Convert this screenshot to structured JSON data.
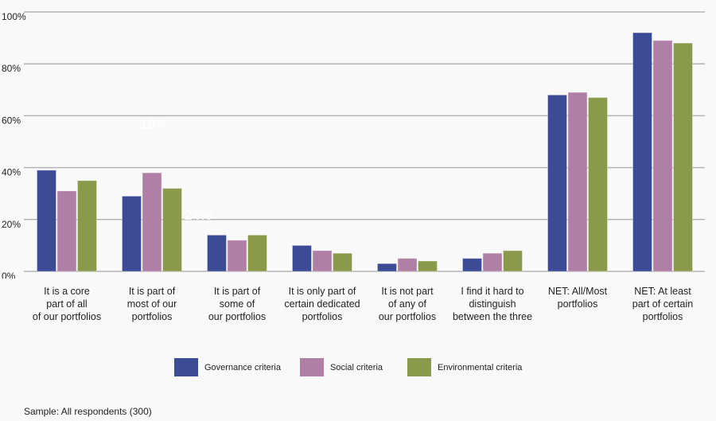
{
  "chart_data": {
    "type": "bar",
    "title": "",
    "xlabel": "",
    "ylabel": "",
    "ylim": [
      0,
      100
    ],
    "yticks": [
      "0%",
      "20%",
      "40%",
      "60%",
      "80%",
      "100%"
    ],
    "grid": true,
    "legend_position": "bottom",
    "categories": [
      "It is a core\npart of all\nof our portfolios",
      "It is part of\nmost of our\nportfolios",
      "It is part of\nsome of\nour portfolios",
      "It is only part of\ncertain dedicated\nportfolios",
      "It is not part\nof any of\nour portfolios",
      "I find it hard to\ndistinguish\nbetween the three",
      "NET: All/Most\nportfolios",
      "NET: At least\npart of certain\nportfolios"
    ],
    "series": [
      {
        "name": "Governance criteria",
        "color": "#3b4b96",
        "values": [
          39,
          29,
          14,
          10,
          3,
          5,
          68,
          92
        ]
      },
      {
        "name": "Social criteria",
        "color": "#b07fa5",
        "values": [
          31,
          38,
          12,
          8,
          5,
          7,
          69,
          89
        ]
      },
      {
        "name": "Environmental criteria",
        "color": "#8b9a4a",
        "values": [
          35,
          32,
          14,
          7,
          4,
          8,
          67,
          88
        ]
      }
    ],
    "annotations": [
      "19%",
      "24%"
    ]
  },
  "footer": {
    "sample": "Sample: All respondents (300)"
  }
}
